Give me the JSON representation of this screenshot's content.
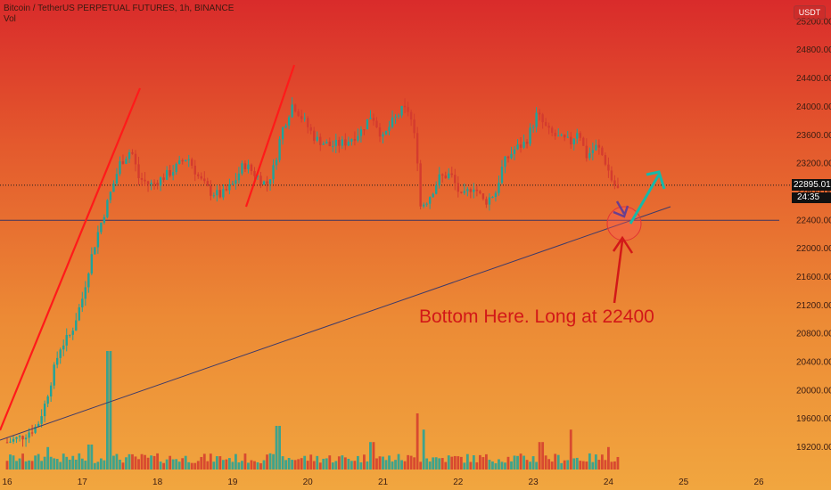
{
  "header": {
    "title": "Bitcoin / TetherUS PERPETUAL FUTURES, 1h, BINANCE",
    "indicator": "Vol"
  },
  "currency": "USDT",
  "current_price": "22895.01",
  "countdown": "24:35",
  "annotation": "Bottom Here. Long at 22400",
  "colors": {
    "up": "#1fa39a",
    "down": "#d43b2e",
    "trend_red": "#ff1a1a",
    "trend_line": "#3d3a6a",
    "arrow_green": "#18b8a8",
    "arrow_purple": "#6a3f8f"
  },
  "chart_data": {
    "type": "candlestick",
    "xlabels": [
      "16",
      "17",
      "18",
      "19",
      "20",
      "21",
      "22",
      "23",
      "24",
      "25",
      "26"
    ],
    "yticks": [
      19200,
      19600,
      20000,
      20400,
      20800,
      21200,
      21600,
      22000,
      22400,
      22800,
      23200,
      23600,
      24000,
      24400,
      24800,
      25200
    ],
    "ylim": [
      18850,
      25300
    ],
    "horizontal_level": 22400,
    "last_price": 22895.01,
    "price_path": [
      [
        16.0,
        19270
      ],
      [
        16.2,
        19350
      ],
      [
        16.4,
        19500
      ],
      [
        16.5,
        19800
      ],
      [
        16.6,
        20200
      ],
      [
        16.7,
        20600
      ],
      [
        16.85,
        20800
      ],
      [
        17.0,
        21300
      ],
      [
        17.1,
        21800
      ],
      [
        17.2,
        22200
      ],
      [
        17.35,
        22700
      ],
      [
        17.5,
        23200
      ],
      [
        17.65,
        23400
      ],
      [
        17.75,
        23000
      ],
      [
        17.9,
        22900
      ],
      [
        18.0,
        22950
      ],
      [
        18.2,
        23100
      ],
      [
        18.4,
        23300
      ],
      [
        18.55,
        23000
      ],
      [
        18.7,
        22800
      ],
      [
        18.85,
        22750
      ],
      [
        19.0,
        22900
      ],
      [
        19.15,
        23200
      ],
      [
        19.3,
        23050
      ],
      [
        19.45,
        22900
      ],
      [
        19.55,
        23150
      ],
      [
        19.65,
        23650
      ],
      [
        19.8,
        24050
      ],
      [
        19.95,
        23800
      ],
      [
        20.1,
        23550
      ],
      [
        20.3,
        23450
      ],
      [
        20.5,
        23500
      ],
      [
        20.7,
        23650
      ],
      [
        20.85,
        23900
      ],
      [
        21.0,
        23550
      ],
      [
        21.1,
        23750
      ],
      [
        21.25,
        23950
      ],
      [
        21.35,
        23950
      ],
      [
        21.45,
        23400
      ],
      [
        21.5,
        22600
      ],
      [
        21.6,
        22700
      ],
      [
        21.75,
        23000
      ],
      [
        21.9,
        23050
      ],
      [
        22.05,
        22700
      ],
      [
        22.2,
        22900
      ],
      [
        22.35,
        22650
      ],
      [
        22.5,
        22800
      ],
      [
        22.6,
        23200
      ],
      [
        22.75,
        23400
      ],
      [
        22.9,
        23500
      ],
      [
        23.05,
        23900
      ],
      [
        23.2,
        23650
      ],
      [
        23.35,
        23550
      ],
      [
        23.5,
        23500
      ],
      [
        23.6,
        23700
      ],
      [
        23.7,
        23300
      ],
      [
        23.85,
        23450
      ],
      [
        23.95,
        23250
      ],
      [
        24.05,
        22950
      ],
      [
        24.15,
        22800
      ]
    ],
    "volume_spikes": [
      [
        17.35,
        0.95
      ],
      [
        19.6,
        0.35
      ],
      [
        20.85,
        0.22
      ],
      [
        21.45,
        0.45
      ],
      [
        21.55,
        0.32
      ],
      [
        23.5,
        0.32
      ],
      [
        23.1,
        0.22
      ],
      [
        24.0,
        0.18
      ],
      [
        16.55,
        0.18
      ],
      [
        17.1,
        0.2
      ]
    ]
  }
}
